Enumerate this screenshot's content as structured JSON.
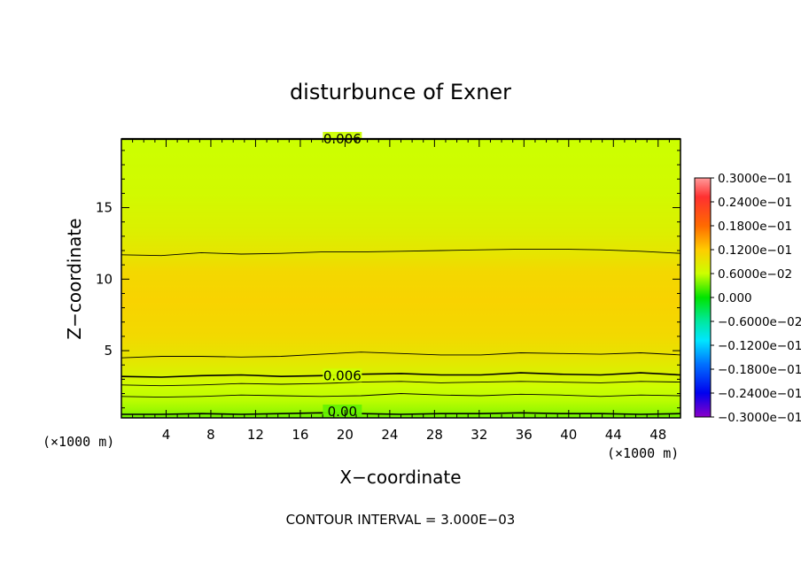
{
  "chart_data": {
    "type": "heatmap",
    "title": "disturbunce of Exner",
    "xlabel": "X−coordinate",
    "ylabel": "Z−coordinate",
    "x_unit": "(×1000 m)",
    "y_unit": "(×1000 m)",
    "xlim": [
      0,
      50
    ],
    "ylim": [
      0.3,
      19.8
    ],
    "x_ticks": [
      4,
      8,
      12,
      16,
      20,
      24,
      28,
      32,
      36,
      40,
      44,
      48
    ],
    "y_ticks": [
      5,
      10,
      15
    ],
    "contour_interval_text": "CONTOUR INTERVAL = 3.000E−03",
    "colorbar": {
      "range": [
        -0.03,
        0.03
      ],
      "labels": [
        "0.3000e−01",
        "0.2400e−01",
        "0.1800e−01",
        "0.1200e−01",
        "0.6000e−02",
        "0.000",
        "−0.6000e−02",
        "−0.1200e−01",
        "−0.1800e−01",
        "−0.2400e−01",
        "−0.3000e−01"
      ]
    },
    "vertical_profile": {
      "z": [
        0.3,
        0.8,
        1.5,
        2.5,
        3.3,
        4.5,
        6.0,
        8.5,
        10.5,
        11.8,
        13.5,
        16.0,
        19.8
      ],
      "value": [
        0.003,
        0.0045,
        0.0055,
        0.0062,
        0.0075,
        0.0092,
        0.0105,
        0.0112,
        0.0106,
        0.0091,
        0.0078,
        0.0066,
        0.006
      ]
    },
    "contour_lines": [
      {
        "level": 0.003,
        "label": "0.00",
        "z": [
          0.55,
          0.55,
          0.6,
          0.55,
          0.6,
          0.65,
          0.6,
          0.55,
          0.6,
          0.6,
          0.65,
          0.6,
          0.6,
          0.55,
          0.6
        ]
      },
      {
        "level": 0.0045,
        "z": [
          1.8,
          1.75,
          1.8,
          1.9,
          1.85,
          1.8,
          1.85,
          2.0,
          1.9,
          1.85,
          1.95,
          1.9,
          1.8,
          1.9,
          1.85
        ]
      },
      {
        "level": 0.006,
        "label": "0.006",
        "z": [
          3.2,
          3.15,
          3.25,
          3.3,
          3.2,
          3.25,
          3.35,
          3.4,
          3.3,
          3.3,
          3.45,
          3.35,
          3.3,
          3.45,
          3.3
        ]
      },
      {
        "level": 0.0075,
        "z": [
          2.6,
          2.55,
          2.6,
          2.7,
          2.65,
          2.7,
          2.8,
          2.85,
          2.75,
          2.8,
          2.85,
          2.8,
          2.75,
          2.85,
          2.8
        ]
      },
      {
        "level": 0.009,
        "z": [
          4.5,
          4.6,
          4.6,
          4.55,
          4.6,
          4.75,
          4.9,
          4.8,
          4.7,
          4.7,
          4.85,
          4.8,
          4.75,
          4.85,
          4.7
        ]
      },
      {
        "level": 0.009,
        "z": [
          11.7,
          11.65,
          11.85,
          11.75,
          11.8,
          11.9,
          11.9,
          11.95,
          12.0,
          12.05,
          12.1,
          12.1,
          12.05,
          11.95,
          11.8
        ]
      },
      {
        "level": 0.006,
        "label": "0.006",
        "z": [
          19.8,
          19.8,
          19.8,
          19.8,
          19.8,
          19.8,
          19.8,
          19.8,
          19.8,
          19.8,
          19.8,
          19.8,
          19.8,
          19.8,
          19.8
        ]
      }
    ]
  }
}
